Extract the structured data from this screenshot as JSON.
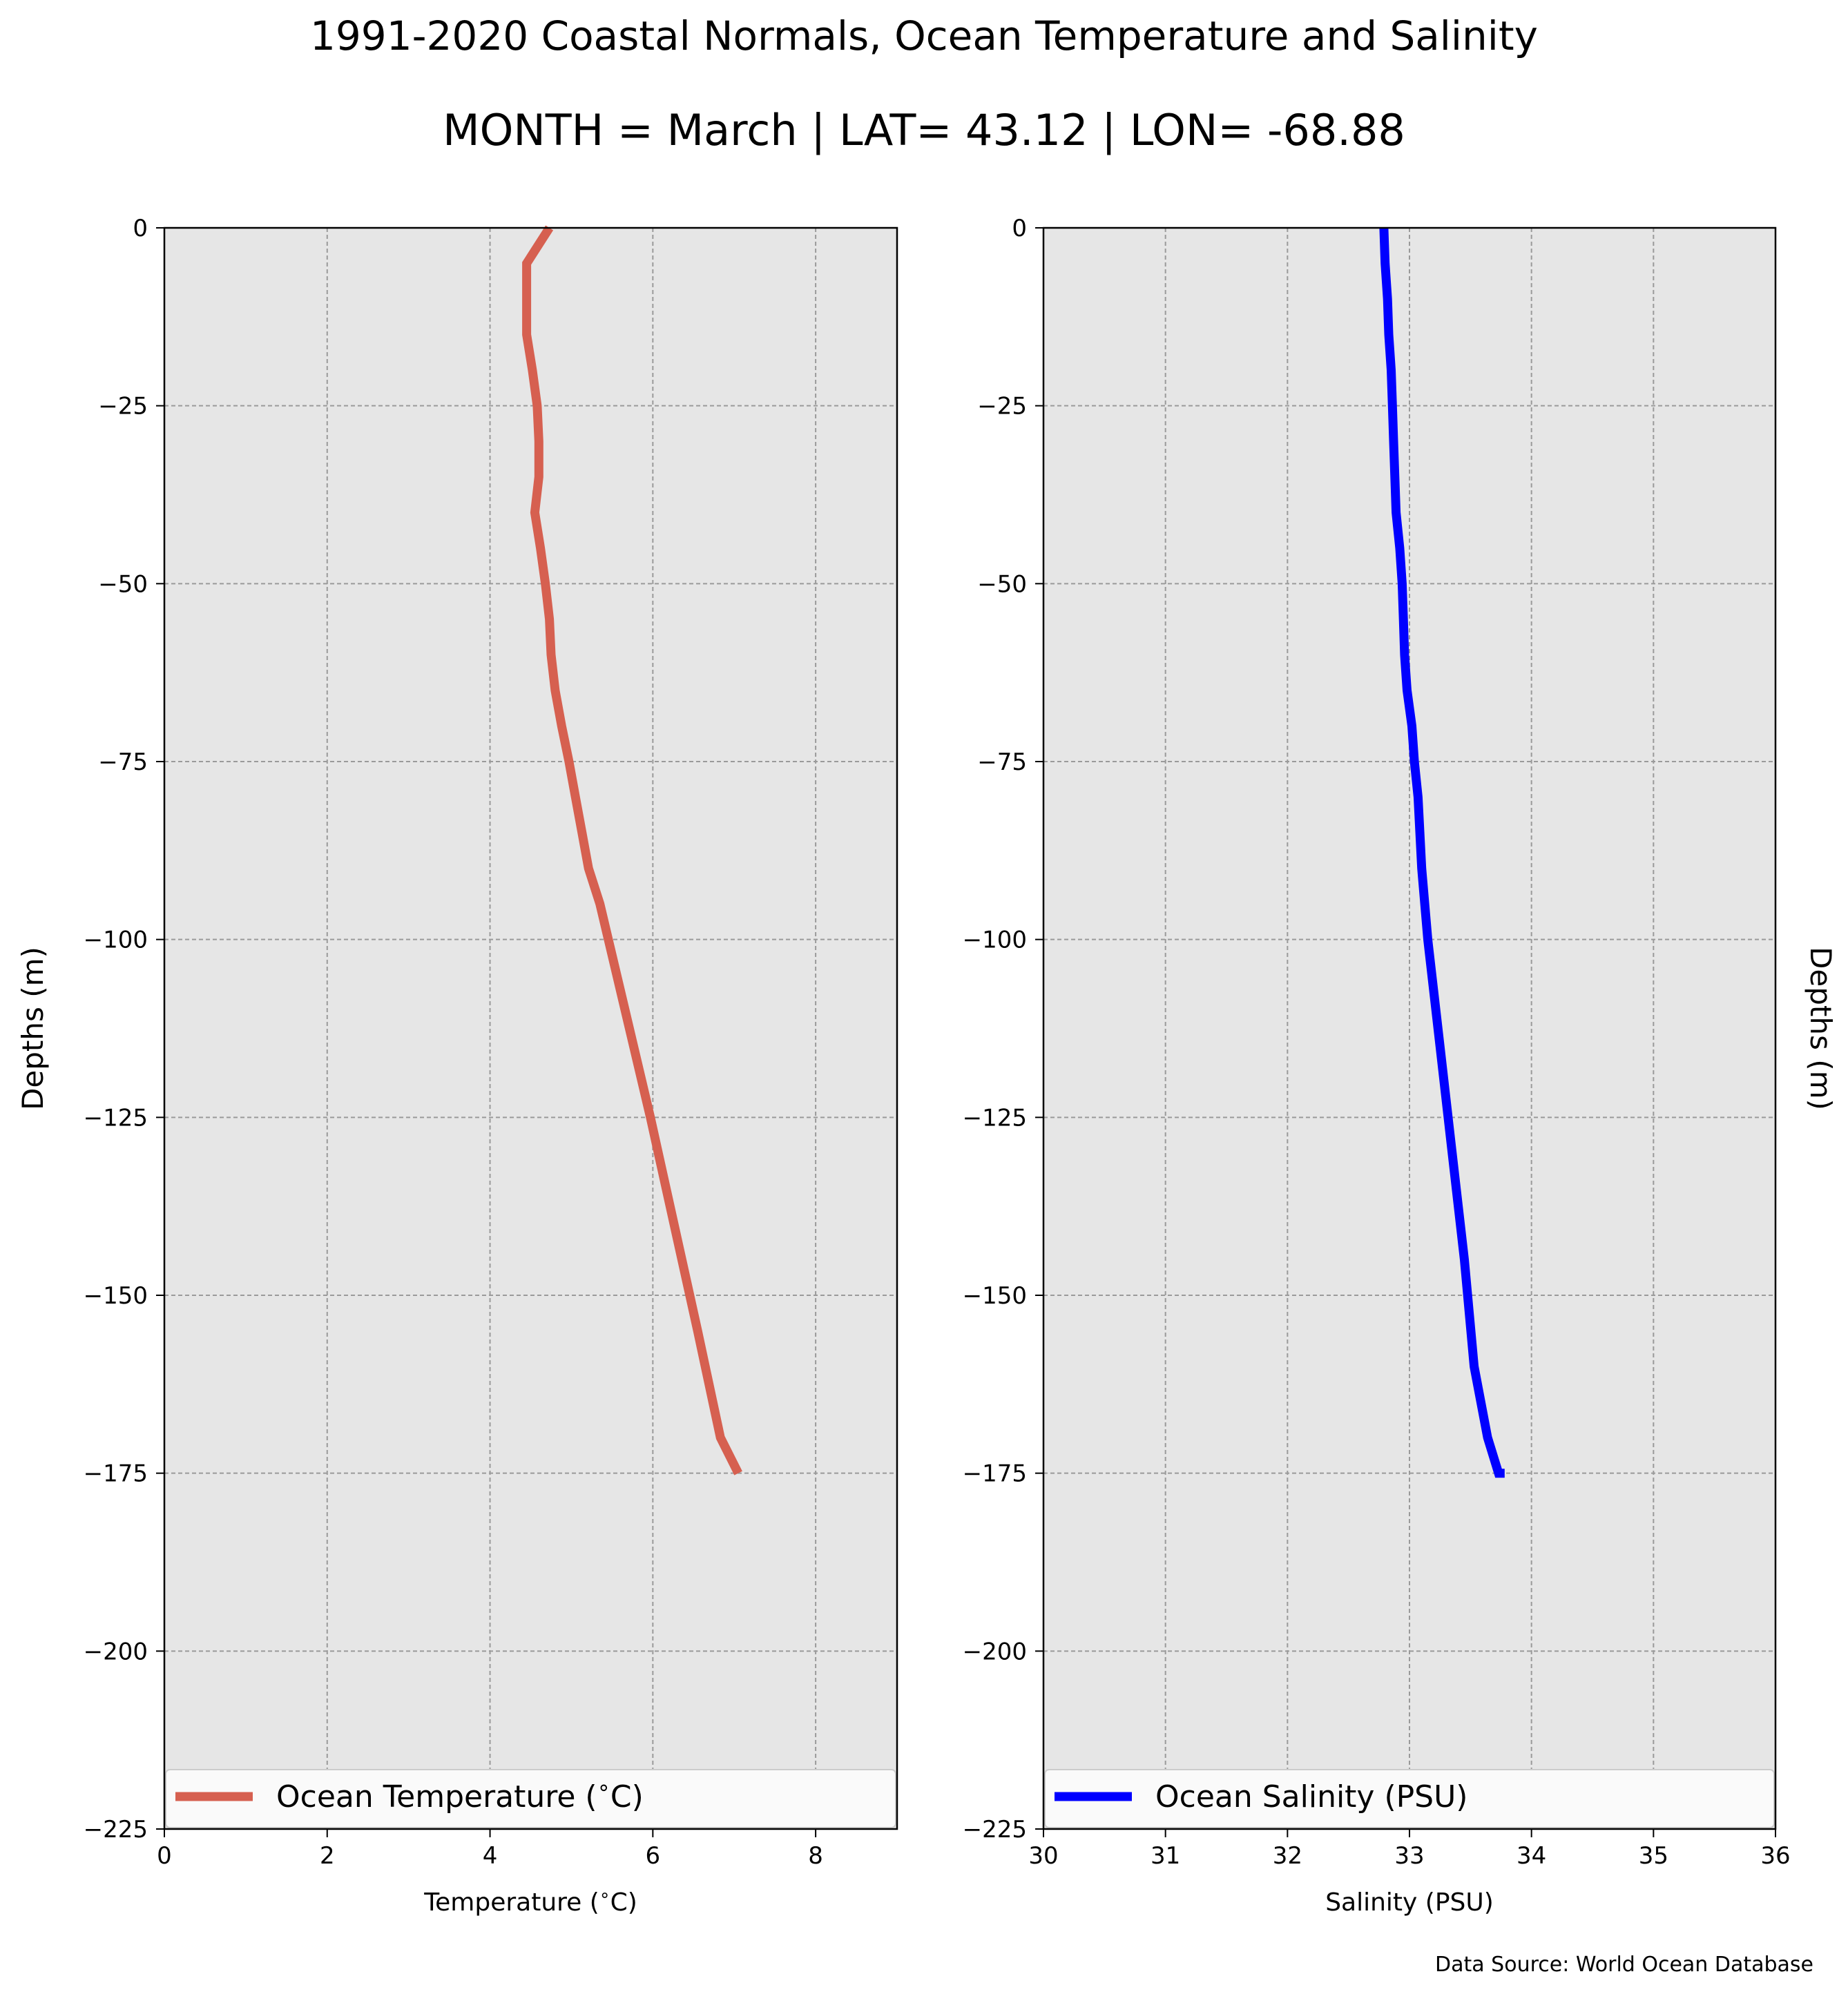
{
  "figure": {
    "title": "1991-2020 Coastal Normals, Ocean Temperature and Salinity",
    "subtitle": "MONTH = March | LAT= 43.12 | LON= -68.88",
    "source": "Data Source: World Ocean Database"
  },
  "chart_data": [
    {
      "type": "line",
      "xlabel": "Temperature ($^\\circ$C)",
      "ylabel": "Depths (m)",
      "xlim": [
        0,
        9
      ],
      "ylim": [
        -225,
        0
      ],
      "xticks": [
        0,
        2,
        4,
        6,
        8
      ],
      "xtick_labels": [
        "0",
        "2",
        "4",
        "6",
        "8"
      ],
      "yticks": [
        0,
        -25,
        -50,
        -75,
        -100,
        -125,
        -150,
        -175,
        -200,
        -225
      ],
      "ytick_labels": [
        "0",
        "−25",
        "−50",
        "−75",
        "−100",
        "−125",
        "−150",
        "−175",
        "−200",
        "−225"
      ],
      "grid": true,
      "legend_position": "bottom",
      "ylabel_side": "left",
      "series": [
        {
          "name": "Ocean Temperature ($^\\circ$C)",
          "color": "#d66050",
          "x": [
            4.73,
            4.45,
            4.45,
            4.45,
            4.52,
            4.58,
            4.6,
            4.6,
            4.55,
            4.62,
            4.68,
            4.73,
            4.75,
            4.8,
            4.88,
            4.97,
            5.05,
            5.13,
            5.21,
            5.35,
            5.66,
            5.97,
            6.26,
            6.55,
            6.83,
            7.05
          ],
          "y": [
            0,
            -5,
            -10,
            -15,
            -20,
            -25,
            -30,
            -35,
            -40,
            -45,
            -50,
            -55,
            -60,
            -65,
            -70,
            -75,
            -80,
            -85,
            -90,
            -95,
            -110,
            -125,
            -140,
            -155,
            -170,
            -175
          ]
        }
      ]
    },
    {
      "type": "line",
      "xlabel": "Salinity (PSU)",
      "ylabel": "Depths (m)",
      "xlim": [
        30,
        36
      ],
      "ylim": [
        -225,
        0
      ],
      "xticks": [
        30,
        31,
        32,
        33,
        34,
        35,
        36
      ],
      "xtick_labels": [
        "30",
        "31",
        "32",
        "33",
        "34",
        "35",
        "36"
      ],
      "yticks": [
        0,
        -25,
        -50,
        -75,
        -100,
        -125,
        -150,
        -175,
        -200,
        -225
      ],
      "ytick_labels": [
        "0",
        "−25",
        "−50",
        "−75",
        "−100",
        "−125",
        "−150",
        "−175",
        "−200",
        "−225"
      ],
      "grid": true,
      "legend_position": "bottom",
      "ylabel_side": "right",
      "series": [
        {
          "name": "Ocean Salinity (PSU)",
          "color": "#0000ff",
          "x": [
            32.79,
            32.8,
            32.82,
            32.83,
            32.85,
            32.86,
            32.87,
            32.88,
            32.89,
            32.92,
            32.94,
            32.95,
            32.96,
            32.98,
            33.02,
            33.04,
            33.07,
            33.1,
            33.15,
            33.25,
            33.35,
            33.45,
            33.53,
            33.64,
            33.73,
            33.78
          ],
          "y": [
            0,
            -5,
            -10,
            -15,
            -20,
            -25,
            -30,
            -35,
            -40,
            -45,
            -50,
            -55,
            -60,
            -65,
            -70,
            -75,
            -80,
            -90,
            -100,
            -115,
            -130,
            -145,
            -160,
            -170,
            -175,
            -175
          ]
        }
      ]
    }
  ]
}
